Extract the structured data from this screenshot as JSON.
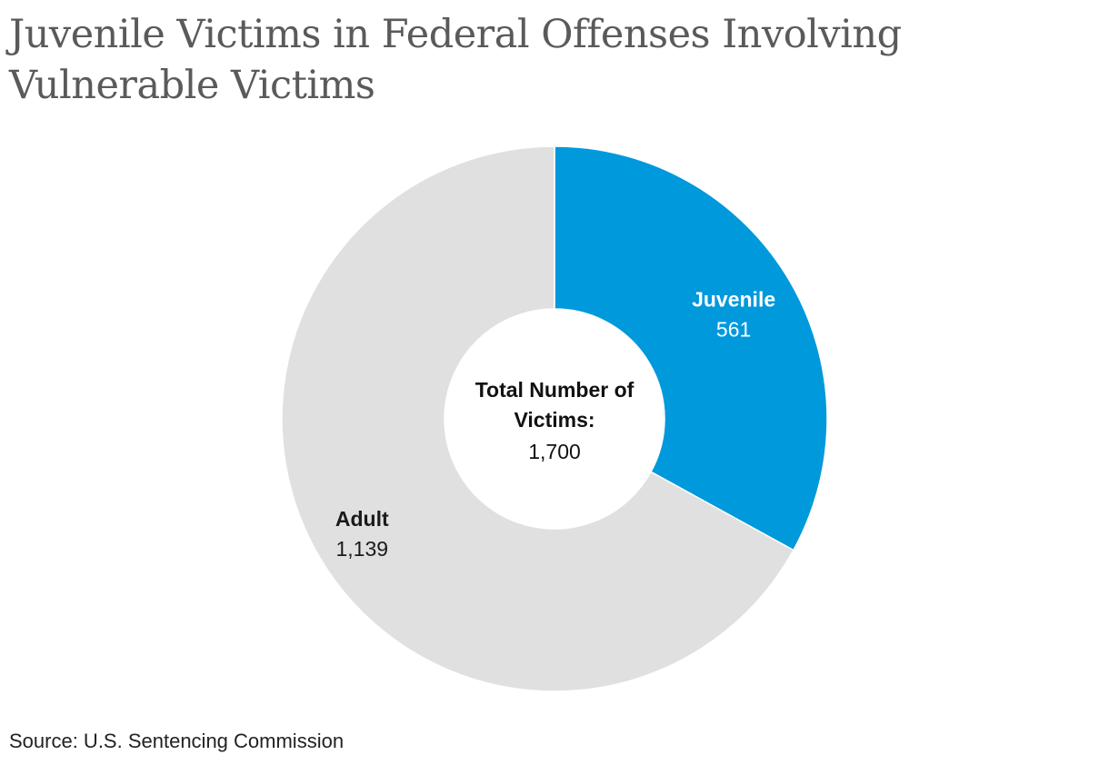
{
  "title": "Juvenile Victims in Federal Offenses Involving Vulnerable Victims",
  "source": "Source: U.S. Sentencing Commission",
  "chart_data": {
    "type": "pie",
    "donut": true,
    "slices": [
      {
        "name": "Juvenile",
        "value": 561,
        "value_label": "561",
        "color": "#0099dc",
        "label_color": "#ffffff"
      },
      {
        "name": "Adult",
        "value": 1139,
        "value_label": "1,139",
        "color": "#e0e0e0",
        "label_color": "#1a1a1a"
      }
    ],
    "center_label": {
      "line1": "Total Number of",
      "line2": "Victims:",
      "value": "1,700"
    },
    "start": "12 o'clock",
    "direction": "clockwise"
  }
}
